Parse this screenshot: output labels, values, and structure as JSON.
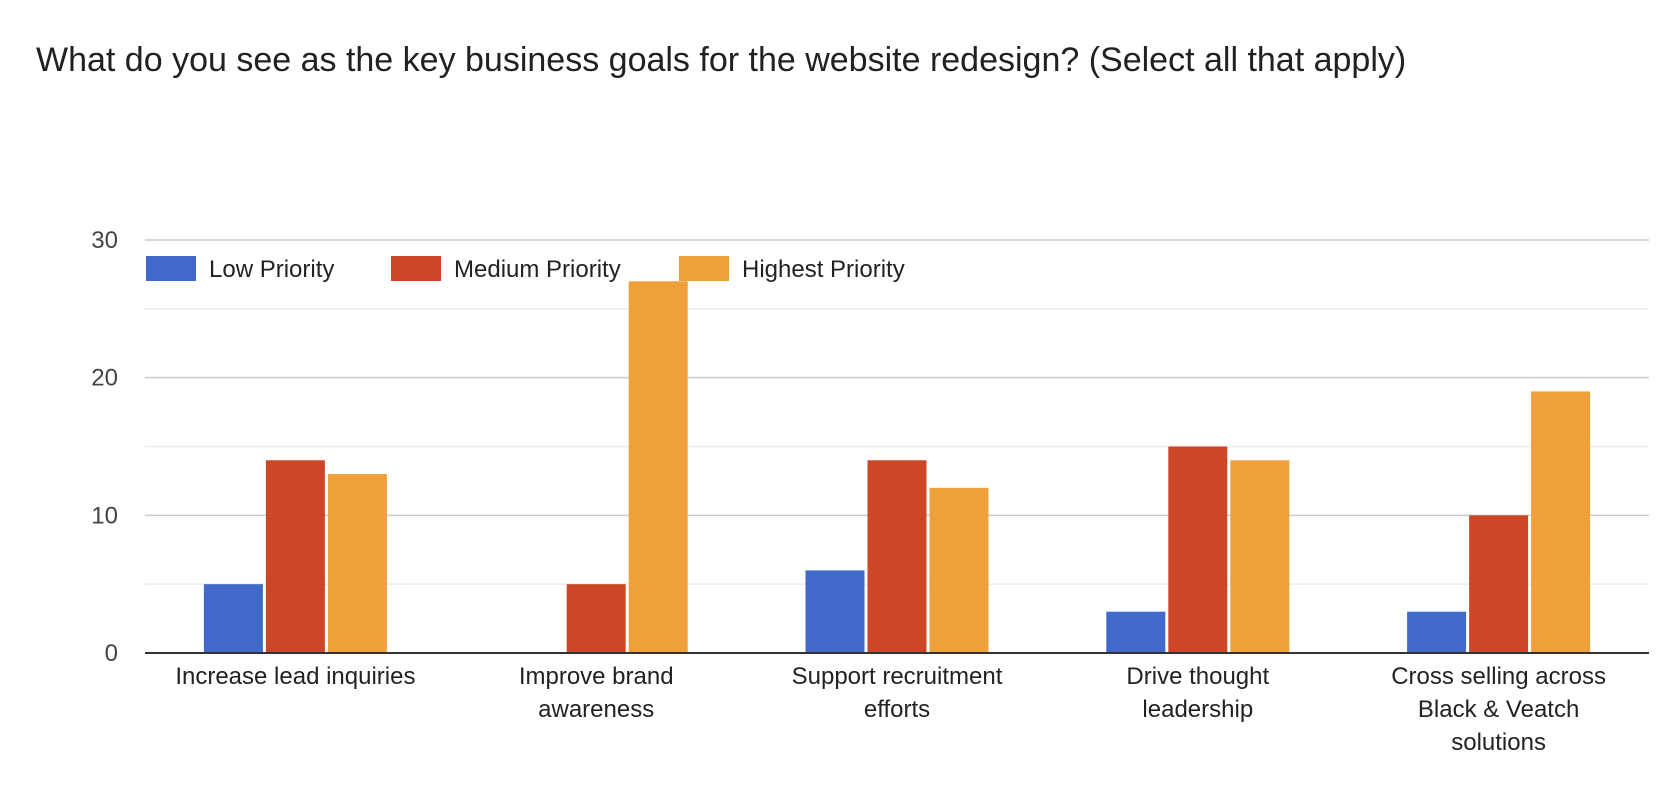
{
  "question": {
    "title": "What do you see as the key business goals for the website redesign? (Select all that apply)"
  },
  "chart_data": {
    "type": "bar",
    "categories": [
      [
        "Increase lead inquiries"
      ],
      [
        "Improve brand",
        "awareness"
      ],
      [
        "Support recruitment",
        "efforts"
      ],
      [
        "Drive thought",
        "leadership"
      ],
      [
        "Cross selling across",
        "Black & Veatch",
        "solutions"
      ]
    ],
    "series": [
      {
        "name": "Low Priority",
        "color": "#4169CB",
        "values": [
          5,
          0,
          6,
          3,
          3
        ]
      },
      {
        "name": "Medium Priority",
        "color": "#CC4728",
        "values": [
          14,
          5,
          14,
          15,
          10
        ]
      },
      {
        "name": "Highest Priority",
        "color": "#F0A03A",
        "values": [
          13,
          27,
          12,
          14,
          19
        ]
      }
    ],
    "ylim": [
      0,
      30
    ],
    "yticks": [
      "0",
      "10",
      "20",
      "30"
    ],
    "minor_grid": true,
    "grid": true,
    "legend_position": "top-left"
  }
}
